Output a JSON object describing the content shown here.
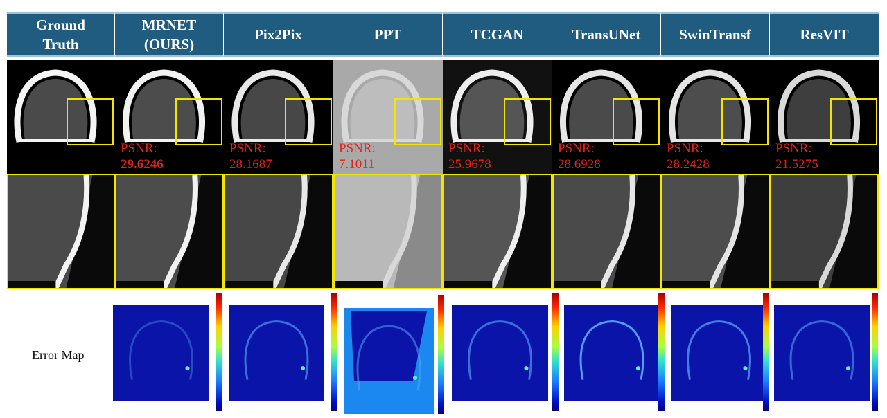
{
  "columns": [
    {
      "id": "gt",
      "label_line1": "Ground",
      "label_line2": "Truth"
    },
    {
      "id": "mrnet",
      "label_line1": "MRNET",
      "label_line2": "(OURS)"
    },
    {
      "id": "p2p",
      "label_line1": "Pix2Pix",
      "label_line2": ""
    },
    {
      "id": "ppt",
      "label_line1": "PPT",
      "label_line2": ""
    },
    {
      "id": "tcgan",
      "label_line1": "TCGAN",
      "label_line2": ""
    },
    {
      "id": "tun",
      "label_line1": "TransUNet",
      "label_line2": ""
    },
    {
      "id": "swin",
      "label_line1": "SwinTransf",
      "label_line2": ""
    },
    {
      "id": "res",
      "label_line1": "ResVIT",
      "label_line2": ""
    }
  ],
  "psnr_label": "PSNR:",
  "psnr": {
    "mrnet": "29.6246",
    "p2p": "28.1687",
    "ppt": "7.1011",
    "tcgan": "25.9678",
    "tun": "28.6928",
    "swin": "28.2428",
    "res": "21.5275"
  },
  "best_method": "mrnet",
  "error_map_label": "Error Map",
  "colors": {
    "header_bg": "#1f5c80",
    "header_text": "#ffffff",
    "zoom_box": "#f2e600",
    "psnr_text": "#e2231a",
    "error_bg": "#0b14a8"
  }
}
